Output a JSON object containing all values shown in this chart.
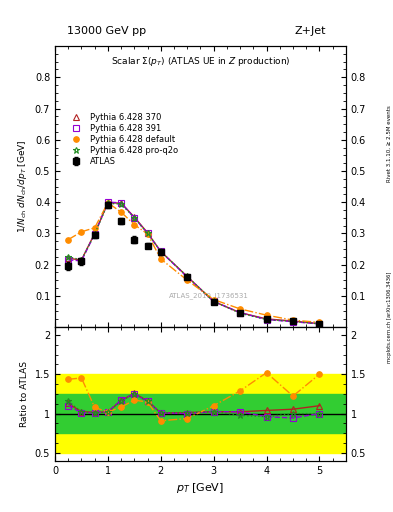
{
  "title_top": "13000 GeV pp",
  "title_right": "Z+Jet",
  "plot_title": "Scalar \\Sigma(p_{T}) (ATLAS UE in Z production)",
  "xlabel": "p_{T} [GeV]",
  "ylabel_main": "1/N_{ch} dN_{ch}/dp_{T} [GeV]",
  "ylabel_ratio": "Ratio to ATLAS",
  "right_label": "mcplots.cern.ch [arXiv:1306.3436]",
  "right_label2": "Rivet 3.1.10, ≥ 2.5M events",
  "watermark": "ATLAS_2019_I1736531",
  "pt_atlas": [
    0.25,
    0.5,
    0.75,
    1.0,
    1.25,
    1.5,
    1.75,
    2.0,
    2.5,
    3.0,
    3.5,
    4.0,
    4.5,
    5.0
  ],
  "y_atlas": [
    0.195,
    0.21,
    0.295,
    0.39,
    0.34,
    0.28,
    0.26,
    0.24,
    0.16,
    0.08,
    0.045,
    0.025,
    0.018,
    0.01
  ],
  "y_atlas_err": [
    0.012,
    0.01,
    0.01,
    0.01,
    0.01,
    0.01,
    0.008,
    0.008,
    0.007,
    0.004,
    0.003,
    0.002,
    0.002,
    0.001
  ],
  "pt_mc": [
    0.25,
    0.5,
    0.75,
    1.0,
    1.25,
    1.5,
    1.75,
    2.0,
    2.5,
    3.0,
    3.5,
    4.0,
    4.5,
    5.0
  ],
  "y_370": [
    0.22,
    0.215,
    0.3,
    0.398,
    0.397,
    0.352,
    0.302,
    0.242,
    0.162,
    0.082,
    0.046,
    0.026,
    0.019,
    0.011
  ],
  "y_391": [
    0.215,
    0.212,
    0.298,
    0.4,
    0.398,
    0.35,
    0.3,
    0.242,
    0.16,
    0.082,
    0.046,
    0.024,
    0.017,
    0.01
  ],
  "y_def": [
    0.28,
    0.305,
    0.318,
    0.398,
    0.368,
    0.328,
    0.298,
    0.218,
    0.15,
    0.088,
    0.058,
    0.038,
    0.022,
    0.015
  ],
  "y_pro": [
    0.225,
    0.215,
    0.298,
    0.396,
    0.394,
    0.35,
    0.3,
    0.242,
    0.162,
    0.082,
    0.044,
    0.024,
    0.018,
    0.01
  ],
  "col_atlas": "#000000",
  "col_370": "#b22222",
  "col_391": "#9400d3",
  "col_def": "#ff8c00",
  "col_pro": "#228b22",
  "band_yellow": [
    0.5,
    1.5
  ],
  "band_green": [
    0.75,
    1.25
  ],
  "ylim_main": [
    0.0,
    0.9
  ],
  "ylim_ratio": [
    0.4,
    2.1
  ],
  "xlim": [
    0.0,
    5.5
  ],
  "yticks_main": [
    0.1,
    0.2,
    0.3,
    0.4,
    0.5,
    0.6,
    0.7,
    0.8
  ],
  "yticks_ratio": [
    0.5,
    1.0,
    1.5,
    2.0
  ]
}
